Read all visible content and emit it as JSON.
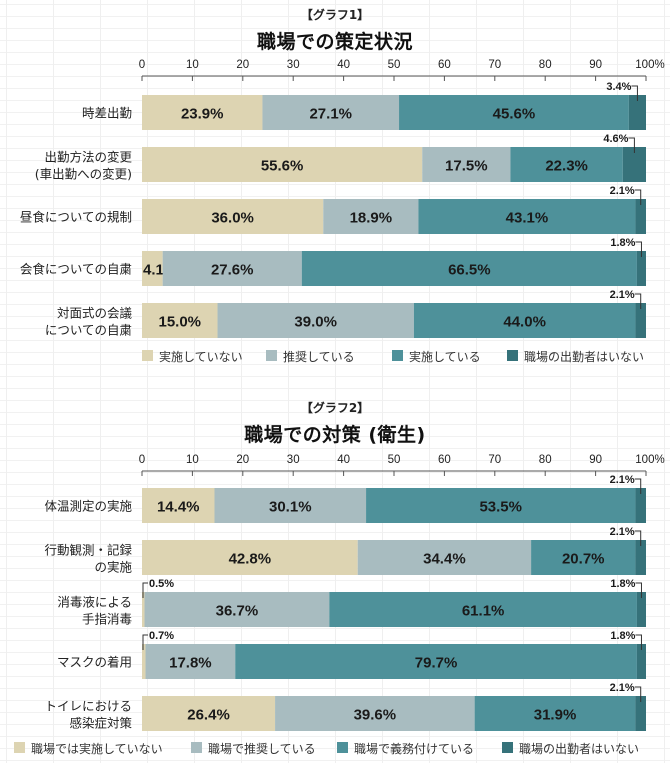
{
  "chart_data": [
    {
      "type": "bar",
      "orientation": "horizontal",
      "stacked": "percent",
      "subtitle": "【グラフ1】",
      "title": "職場での策定状況",
      "xlim": [
        0,
        100
      ],
      "ticks": [
        "0",
        "10",
        "20",
        "30",
        "40",
        "50",
        "60",
        "70",
        "80",
        "90",
        "100%"
      ],
      "categories": [
        [
          "時差出勤"
        ],
        [
          "出勤方法の変更",
          "(車出勤への変更)"
        ],
        [
          "昼食についての規制"
        ],
        [
          "会食についての自粛"
        ],
        [
          "対面式の会議",
          "についての自粛"
        ]
      ],
      "series": [
        {
          "name": "実施していない",
          "color": "#DDD4B2",
          "values": [
            23.9,
            55.6,
            36.0,
            4.1,
            15.0
          ]
        },
        {
          "name": "推奨している",
          "color": "#A8BCC0",
          "values": [
            27.1,
            17.5,
            18.9,
            27.6,
            39.0
          ]
        },
        {
          "name": "実施している",
          "color": "#4E919A",
          "values": [
            45.6,
            22.3,
            43.1,
            66.5,
            44.0
          ]
        },
        {
          "name": "職場の出勤者はいない",
          "color": "#36727A",
          "values": [
            3.4,
            4.6,
            2.1,
            1.8,
            2.1
          ]
        }
      ],
      "legend": "bottom"
    },
    {
      "type": "bar",
      "orientation": "horizontal",
      "stacked": "percent",
      "subtitle": "【グラフ2】",
      "title": "職場での対策 (衛生)",
      "xlim": [
        0,
        100
      ],
      "ticks": [
        "0",
        "10",
        "20",
        "30",
        "40",
        "50",
        "60",
        "70",
        "80",
        "90",
        "100%"
      ],
      "categories": [
        [
          "体温測定の実施"
        ],
        [
          "行動観測・記録",
          "の実施"
        ],
        [
          "消毒液による",
          "手指消毒"
        ],
        [
          "マスクの着用"
        ],
        [
          "トイレにおける",
          "感染症対策"
        ]
      ],
      "series": [
        {
          "name": "職場では実施していない",
          "color": "#DDD4B2",
          "values": [
            14.4,
            42.8,
            0.5,
            0.7,
            26.4
          ]
        },
        {
          "name": "職場で推奨している",
          "color": "#A8BCC0",
          "values": [
            30.1,
            34.4,
            36.7,
            17.8,
            39.6
          ]
        },
        {
          "name": "職場で義務付けている",
          "color": "#4E919A",
          "values": [
            53.5,
            20.7,
            61.1,
            79.7,
            31.9
          ]
        },
        {
          "name": "職場の出勤者はいない",
          "color": "#36727A",
          "values": [
            2.1,
            2.1,
            1.8,
            1.8,
            2.1
          ]
        }
      ],
      "legend": "bottom"
    }
  ]
}
